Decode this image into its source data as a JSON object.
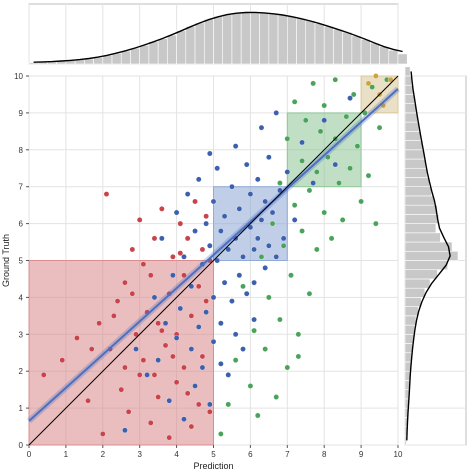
{
  "chart_data": {
    "type": "scatter",
    "title": "",
    "xlabel": "Prediction",
    "ylabel": "Ground Truth",
    "xlim": [
      0,
      10
    ],
    "ylim": [
      0,
      10
    ],
    "xticks": [
      "0",
      "1",
      "2",
      "3",
      "4",
      "5",
      "6",
      "7",
      "8",
      "9",
      "10"
    ],
    "yticks": [
      "0",
      "1",
      "2",
      "3",
      "4",
      "5",
      "6",
      "7",
      "8",
      "9",
      "10"
    ],
    "grid": true,
    "colors": {
      "red": "#c8434a",
      "blue": "#3c60ad",
      "green": "#4aa35a",
      "gold": "#d0a23e",
      "hist": "#c8c8c8",
      "fit_line": "#4c6fbf",
      "identity_line": "#000000"
    },
    "regions": [
      {
        "x": [
          0,
          5
        ],
        "y": [
          0,
          5
        ],
        "color": "#d9868a"
      },
      {
        "x": [
          5,
          7
        ],
        "y": [
          5,
          7
        ],
        "color": "#8ca5d6"
      },
      {
        "x": [
          7,
          9
        ],
        "y": [
          7,
          9
        ],
        "color": "#8cc595"
      },
      {
        "x": [
          9,
          10
        ],
        "y": [
          9,
          10
        ],
        "color": "#d8c796"
      }
    ],
    "fit_line": {
      "x": [
        0,
        10
      ],
      "y": [
        0.65,
        9.65
      ]
    },
    "identity_line": {
      "x": [
        0,
        10
      ],
      "y": [
        0,
        10
      ]
    },
    "series": [
      {
        "color_key": "red",
        "points": [
          [
            0.4,
            1.9
          ],
          [
            0.9,
            2.3
          ],
          [
            1.3,
            2.9
          ],
          [
            1.6,
            1.2
          ],
          [
            1.9,
            3.3
          ],
          [
            2.0,
            0.3
          ],
          [
            2.1,
            6.8
          ],
          [
            2.2,
            2.6
          ],
          [
            2.4,
            3.9
          ],
          [
            2.5,
            1.5
          ],
          [
            2.6,
            4.4
          ],
          [
            2.7,
            0.9
          ],
          [
            2.8,
            5.3
          ],
          [
            2.9,
            3.0
          ],
          [
            3.0,
            1.9
          ],
          [
            3.0,
            6.1
          ],
          [
            3.1,
            2.3
          ],
          [
            3.2,
            3.6
          ],
          [
            3.3,
            0.6
          ],
          [
            3.3,
            4.6
          ],
          [
            3.4,
            5.6
          ],
          [
            3.5,
            1.3
          ],
          [
            3.5,
            3.3
          ],
          [
            3.6,
            6.4
          ],
          [
            3.7,
            2.7
          ],
          [
            3.8,
            4.1
          ],
          [
            3.8,
            0.2
          ],
          [
            3.9,
            5.1
          ],
          [
            4.0,
            1.7
          ],
          [
            4.0,
            3.0
          ],
          [
            4.1,
            6.0
          ],
          [
            4.2,
            4.6
          ],
          [
            4.2,
            2.1
          ],
          [
            4.3,
            5.6
          ],
          [
            4.4,
            0.5
          ],
          [
            4.4,
            3.5
          ],
          [
            4.5,
            6.6
          ],
          [
            4.6,
            1.1
          ],
          [
            4.6,
            4.3
          ],
          [
            4.7,
            5.3
          ],
          [
            4.7,
            2.4
          ],
          [
            4.8,
            3.9
          ],
          [
            4.8,
            6.2
          ],
          [
            4.9,
            0.9
          ],
          [
            4.9,
            5.0
          ],
          [
            3.6,
            3.1
          ],
          [
            3.1,
            4.9
          ],
          [
            2.6,
            2.1
          ],
          [
            2.3,
            3.5
          ],
          [
            1.7,
            2.6
          ],
          [
            3.9,
            2.4
          ],
          [
            4.3,
            1.4
          ],
          [
            3.4,
            1.9
          ],
          [
            2.8,
            4.1
          ],
          [
            4.1,
            5.2
          ]
        ]
      },
      {
        "color_key": "blue",
        "points": [
          [
            2.6,
            0.4
          ],
          [
            2.9,
            2.6
          ],
          [
            3.2,
            1.9
          ],
          [
            3.4,
            4.0
          ],
          [
            3.5,
            2.3
          ],
          [
            3.6,
            5.6
          ],
          [
            3.7,
            3.3
          ],
          [
            3.8,
            1.2
          ],
          [
            3.9,
            4.6
          ],
          [
            4.0,
            6.3
          ],
          [
            4.0,
            2.9
          ],
          [
            4.1,
            3.7
          ],
          [
            4.2,
            5.1
          ],
          [
            4.2,
            0.7
          ],
          [
            4.3,
            6.8
          ],
          [
            4.4,
            2.6
          ],
          [
            4.4,
            4.3
          ],
          [
            4.5,
            5.8
          ],
          [
            4.5,
            1.6
          ],
          [
            4.6,
            3.2
          ],
          [
            4.6,
            7.2
          ],
          [
            4.7,
            4.9
          ],
          [
            4.7,
            2.1
          ],
          [
            4.8,
            6.0
          ],
          [
            4.8,
            3.6
          ],
          [
            4.9,
            1.1
          ],
          [
            4.9,
            5.4
          ],
          [
            5.0,
            4.0
          ],
          [
            5.0,
            6.6
          ],
          [
            5.0,
            2.8
          ],
          [
            5.1,
            5.0
          ],
          [
            5.1,
            7.5
          ],
          [
            5.2,
            3.3
          ],
          [
            5.2,
            5.8
          ],
          [
            5.3,
            4.4
          ],
          [
            5.3,
            6.2
          ],
          [
            5.4,
            1.9
          ],
          [
            5.4,
            5.3
          ],
          [
            5.5,
            7.0
          ],
          [
            5.5,
            3.9
          ],
          [
            5.6,
            5.6
          ],
          [
            5.6,
            8.1
          ],
          [
            5.7,
            4.6
          ],
          [
            5.7,
            6.4
          ],
          [
            5.8,
            2.6
          ],
          [
            5.8,
            5.1
          ],
          [
            5.9,
            7.6
          ],
          [
            5.9,
            4.1
          ],
          [
            6.0,
            5.9
          ],
          [
            6.0,
            6.8
          ],
          [
            6.1,
            5.3
          ],
          [
            6.1,
            3.4
          ],
          [
            6.2,
            7.2
          ],
          [
            6.2,
            5.6
          ],
          [
            6.3,
            6.1
          ],
          [
            6.3,
            8.6
          ],
          [
            6.4,
            4.8
          ],
          [
            6.4,
            6.6
          ],
          [
            6.5,
            5.4
          ],
          [
            6.5,
            7.8
          ],
          [
            6.6,
            6.3
          ],
          [
            6.7,
            5.1
          ],
          [
            6.7,
            9.0
          ],
          [
            6.8,
            6.9
          ],
          [
            6.9,
            5.6
          ],
          [
            7.0,
            7.4
          ],
          [
            7.2,
            6.1
          ],
          [
            7.4,
            8.2
          ],
          [
            7.7,
            7.1
          ],
          [
            8.0,
            8.8
          ],
          [
            8.3,
            7.6
          ],
          [
            8.7,
            9.4
          ],
          [
            5.2,
            2.2
          ],
          [
            4.9,
            7.9
          ],
          [
            5.6,
            3.0
          ],
          [
            6.1,
            4.4
          ]
        ]
      },
      {
        "color_key": "green",
        "points": [
          [
            5.2,
            0.3
          ],
          [
            5.4,
            1.1
          ],
          [
            5.6,
            2.3
          ],
          [
            5.8,
            4.3
          ],
          [
            6.0,
            1.6
          ],
          [
            6.1,
            3.1
          ],
          [
            6.2,
            0.8
          ],
          [
            6.3,
            5.1
          ],
          [
            6.4,
            2.6
          ],
          [
            6.5,
            4.0
          ],
          [
            6.6,
            6.0
          ],
          [
            6.7,
            1.3
          ],
          [
            6.8,
            3.4
          ],
          [
            6.8,
            7.1
          ],
          [
            6.9,
            5.4
          ],
          [
            7.0,
            2.1
          ],
          [
            7.0,
            8.3
          ],
          [
            7.1,
            4.6
          ],
          [
            7.2,
            6.5
          ],
          [
            7.2,
            9.3
          ],
          [
            7.3,
            3.0
          ],
          [
            7.4,
            7.7
          ],
          [
            7.4,
            5.8
          ],
          [
            7.5,
            8.8
          ],
          [
            7.6,
            6.9
          ],
          [
            7.6,
            4.1
          ],
          [
            7.7,
            9.8
          ],
          [
            7.8,
            7.4
          ],
          [
            7.8,
            5.3
          ],
          [
            7.9,
            8.5
          ],
          [
            8.0,
            6.3
          ],
          [
            8.0,
            9.2
          ],
          [
            8.1,
            7.8
          ],
          [
            8.2,
            5.6
          ],
          [
            8.3,
            8.3
          ],
          [
            8.3,
            9.9
          ],
          [
            8.4,
            7.1
          ],
          [
            8.5,
            6.1
          ],
          [
            8.6,
            8.9
          ],
          [
            8.7,
            7.5
          ],
          [
            8.8,
            9.5
          ],
          [
            8.9,
            8.1
          ],
          [
            9.0,
            6.6
          ],
          [
            9.1,
            9.0
          ],
          [
            9.2,
            7.3
          ],
          [
            9.3,
            9.7
          ],
          [
            9.5,
            8.6
          ],
          [
            9.7,
            9.9
          ],
          [
            9.4,
            6.0
          ],
          [
            7.3,
            2.4
          ]
        ]
      },
      {
        "color_key": "gold",
        "points": [
          [
            9.2,
            9.8
          ],
          [
            9.5,
            9.5
          ],
          [
            9.8,
            9.9
          ],
          [
            9.4,
            10.0
          ],
          [
            9.6,
            9.2
          ]
        ]
      }
    ],
    "top_hist": {
      "bin_start": 0,
      "bin_width": 0.25,
      "counts": [
        2,
        3,
        3,
        4,
        5,
        6,
        7,
        9,
        12,
        15,
        18,
        22,
        26,
        31,
        35,
        40,
        46,
        52,
        57,
        62,
        66,
        69,
        71,
        72,
        72,
        71,
        70,
        68,
        66,
        63,
        60,
        56,
        52,
        48,
        44,
        39,
        34,
        29,
        24,
        19,
        14
      ]
    },
    "right_hist": {
      "bin_start": 0,
      "bin_width": 0.25,
      "counts": [
        2,
        3,
        3,
        4,
        5,
        6,
        6,
        7,
        8,
        9,
        10,
        12,
        13,
        15,
        18,
        22,
        27,
        34,
        44,
        58,
        72,
        64,
        48,
        42,
        46,
        44,
        40,
        36,
        33,
        30,
        28,
        26,
        24,
        21,
        19,
        17,
        15,
        13,
        11,
        9,
        7
      ]
    }
  }
}
